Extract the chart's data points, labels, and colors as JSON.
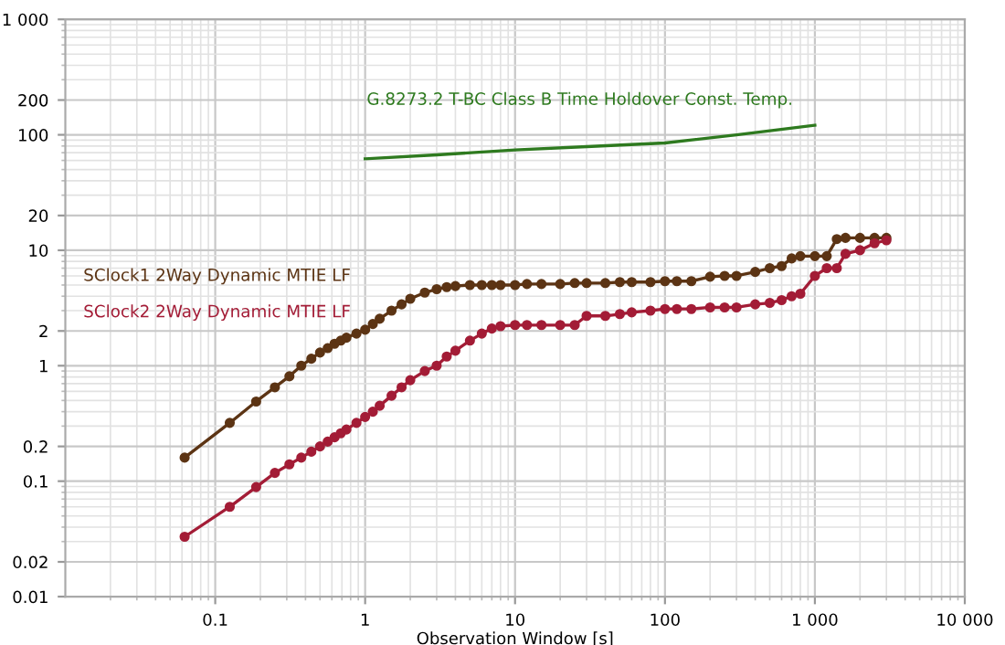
{
  "chart_data": {
    "type": "line",
    "xlabel": "Observation Window [s]",
    "log": "xy",
    "grid": true,
    "xlim": [
      0.01,
      10000
    ],
    "ylim": [
      0.01,
      1000
    ],
    "xticks": [
      0.1,
      1,
      10,
      100,
      {
        "value": 1000,
        "label": "1 000"
      },
      {
        "value": 10000,
        "label": "10 000"
      }
    ],
    "yticks": [
      0.01,
      0.02,
      0.1,
      0.2,
      1,
      2,
      10,
      20,
      100,
      200,
      {
        "value": 1000,
        "label": "1 000"
      }
    ],
    "series": [
      {
        "name": "G.8273.2 T-BC Class B Time Holdover Const. Temp.",
        "color": "#2e7a1f",
        "marker": "none",
        "x": [
          1,
          3,
          10,
          30,
          100,
          300,
          1000
        ],
        "values": [
          62,
          67,
          74,
          79,
          85,
          100,
          121
        ]
      },
      {
        "name": "SClock1 2Way Dynamic MTIE LF",
        "color": "#5c3414",
        "marker": "circle",
        "x": [
          0.0625,
          0.125,
          0.1875,
          0.25,
          0.3125,
          0.375,
          0.4375,
          0.5,
          0.5625,
          0.625,
          0.6875,
          0.75,
          0.875,
          1,
          1.125,
          1.25,
          1.5,
          1.75,
          2,
          2.5,
          3,
          3.5,
          4,
          5,
          6,
          7,
          8,
          10,
          12,
          15,
          20,
          25,
          30,
          40,
          50,
          60,
          80,
          100,
          120,
          150,
          200,
          250,
          300,
          400,
          500,
          600,
          700,
          800,
          1000,
          1200,
          1400,
          1600,
          2000,
          2500,
          3000
        ],
        "values": [
          0.16,
          0.32,
          0.49,
          0.65,
          0.81,
          1.0,
          1.15,
          1.3,
          1.42,
          1.55,
          1.65,
          1.75,
          1.9,
          2.05,
          2.3,
          2.55,
          3.0,
          3.4,
          3.8,
          4.3,
          4.6,
          4.8,
          4.9,
          5.0,
          5.0,
          5.0,
          5.0,
          5.0,
          5.1,
          5.1,
          5.1,
          5.2,
          5.2,
          5.2,
          5.3,
          5.3,
          5.3,
          5.4,
          5.4,
          5.4,
          5.9,
          6.0,
          6.0,
          6.5,
          7.0,
          7.3,
          8.5,
          8.9,
          8.9,
          8.9,
          12.5,
          12.8,
          12.8,
          12.8,
          12.8
        ]
      },
      {
        "name": "SClock2 2Way Dynamic MTIE LF",
        "color": "#a31c36",
        "marker": "circle",
        "x": [
          0.0625,
          0.125,
          0.1875,
          0.25,
          0.3125,
          0.375,
          0.4375,
          0.5,
          0.5625,
          0.625,
          0.6875,
          0.75,
          0.875,
          1,
          1.125,
          1.25,
          1.5,
          1.75,
          2,
          2.5,
          3,
          3.5,
          4,
          5,
          6,
          7,
          8,
          10,
          12,
          15,
          20,
          25,
          30,
          40,
          50,
          60,
          80,
          100,
          120,
          150,
          200,
          250,
          300,
          400,
          500,
          600,
          700,
          800,
          1000,
          1200,
          1400,
          1600,
          2000,
          2500,
          3000
        ],
        "values": [
          0.033,
          0.06,
          0.089,
          0.118,
          0.14,
          0.16,
          0.18,
          0.2,
          0.22,
          0.24,
          0.26,
          0.28,
          0.32,
          0.36,
          0.4,
          0.45,
          0.55,
          0.65,
          0.75,
          0.9,
          1.0,
          1.2,
          1.35,
          1.65,
          1.9,
          2.1,
          2.2,
          2.25,
          2.25,
          2.25,
          2.25,
          2.25,
          2.7,
          2.7,
          2.8,
          2.9,
          3.0,
          3.1,
          3.1,
          3.1,
          3.2,
          3.2,
          3.2,
          3.4,
          3.5,
          3.7,
          4.0,
          4.2,
          6.0,
          7.0,
          7.0,
          9.3,
          10.0,
          11.5,
          12.2
        ]
      }
    ]
  }
}
